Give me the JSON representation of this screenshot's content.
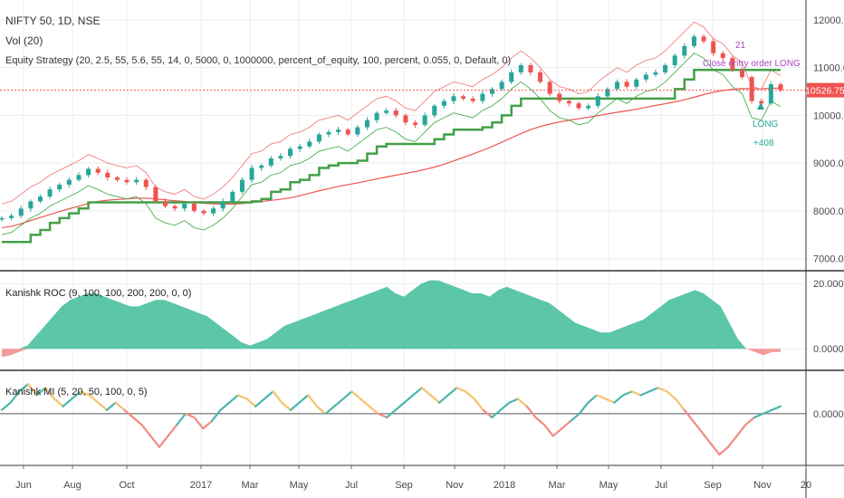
{
  "header": {
    "symbol_line": "NIFTY 50, 1D, NSE",
    "volume_line": "Vol (20)",
    "strategy_line": "Equity Strategy (20, 2.5, 55, 5.6, 55, 14, 0, 5000, 0, 1000000, percent_of_equity, 100, percent, 0.055, 0, Default, 0)"
  },
  "colors": {
    "grid": "#e9edf2",
    "candle_up": "#26a69a",
    "candle_down": "#ef5350",
    "price_line": "#ef5350",
    "roc_pos": "#5bc6a8",
    "roc_neg": "#f59a9a",
    "panel_border": "#333333",
    "label_bg": "#ef5350"
  },
  "annotations": {
    "close_entry": "Close entry order LONG",
    "close_entry_num": "21",
    "long_label": "LONG",
    "long_profit": "+408"
  },
  "chart_data": [
    {
      "type": "candlestick",
      "title": "NIFTY 50, 1D, NSE",
      "y_ticks": [
        "12000.00",
        "11000.00",
        "10000.00",
        "9000.00",
        "8000.00",
        "7000.00"
      ],
      "ylim": [
        6900,
        12300
      ],
      "last_price_label": "10526.75",
      "last_price": 10526.75,
      "x_ticks": [
        "Jun",
        "Aug",
        "Oct",
        "2017",
        "Mar",
        "May",
        "Jul",
        "Sep",
        "Nov",
        "2018",
        "Mar",
        "May",
        "Jul",
        "Sep",
        "Nov",
        "20"
      ],
      "close_series": [
        7850,
        7900,
        8050,
        8200,
        8300,
        8450,
        8550,
        8650,
        8750,
        8880,
        8800,
        8700,
        8650,
        8600,
        8650,
        8500,
        8200,
        8100,
        8050,
        8150,
        8000,
        7950,
        8050,
        8200,
        8400,
        8650,
        8900,
        8950,
        9100,
        9150,
        9300,
        9350,
        9450,
        9600,
        9650,
        9700,
        9600,
        9750,
        9900,
        10050,
        10100,
        10000,
        9850,
        9800,
        10000,
        10200,
        10300,
        10400,
        10350,
        10300,
        10450,
        10550,
        10700,
        10900,
        11050,
        10900,
        10700,
        10450,
        10300,
        10250,
        10150,
        10200,
        10400,
        10550,
        10700,
        10600,
        10750,
        10850,
        10900,
        11050,
        11250,
        11450,
        11650,
        11550,
        11300,
        11200,
        10950,
        10800,
        10300,
        10250,
        10650,
        10530
      ]
    },
    {
      "type": "area",
      "title": "Kanishk ROC (9, 100, 100, 200, 200, 0, 0)",
      "y_ticks": [
        "20.0000",
        "0.0000"
      ],
      "ylim": [
        -3,
        22
      ],
      "values": [
        -2.5,
        -2,
        -1,
        1,
        4,
        7,
        10,
        13,
        15,
        16,
        17,
        17,
        16,
        15,
        14,
        13,
        13,
        14,
        15,
        15,
        14,
        13,
        12,
        11,
        10,
        8,
        6,
        4,
        2,
        1,
        2,
        3,
        5,
        7,
        8,
        9,
        10,
        11,
        12,
        13,
        14,
        15,
        16,
        17,
        18,
        19,
        17,
        16,
        18,
        20,
        21,
        21,
        20,
        19,
        18,
        17,
        17,
        16,
        18,
        19,
        18,
        17,
        16,
        15,
        14,
        12,
        10,
        8,
        7,
        6,
        5,
        5,
        6,
        7,
        8,
        9,
        11,
        13,
        15,
        16,
        17,
        18,
        17,
        15,
        13,
        8,
        3,
        0,
        -1,
        -2,
        -1,
        -1
      ]
    },
    {
      "type": "line",
      "title": "Kanishk MI (5, 20, 50, 100, 0, 5)",
      "y_ticks": [
        "0.0000"
      ],
      "ylim": [
        -12,
        10
      ],
      "values": [
        1,
        3,
        6,
        8,
        5,
        7,
        4,
        2,
        4,
        6,
        5,
        3,
        1,
        3,
        1,
        -1,
        -3,
        -6,
        -9,
        -6,
        -3,
        0,
        -1,
        -4,
        -2,
        1,
        3,
        5,
        4,
        2,
        4,
        6,
        3,
        1,
        3,
        5,
        2,
        0,
        2,
        4,
        6,
        4,
        2,
        0,
        -1,
        1,
        3,
        5,
        7,
        5,
        3,
        5,
        7,
        6,
        4,
        1,
        -1,
        1,
        3,
        4,
        2,
        -1,
        -3,
        -6,
        -4,
        -2,
        0,
        3,
        5,
        4,
        3,
        5,
        6,
        5,
        6,
        7,
        6,
        4,
        1,
        -2,
        -5,
        -8,
        -11,
        -9,
        -6,
        -3,
        -1,
        0,
        1,
        2
      ]
    }
  ]
}
